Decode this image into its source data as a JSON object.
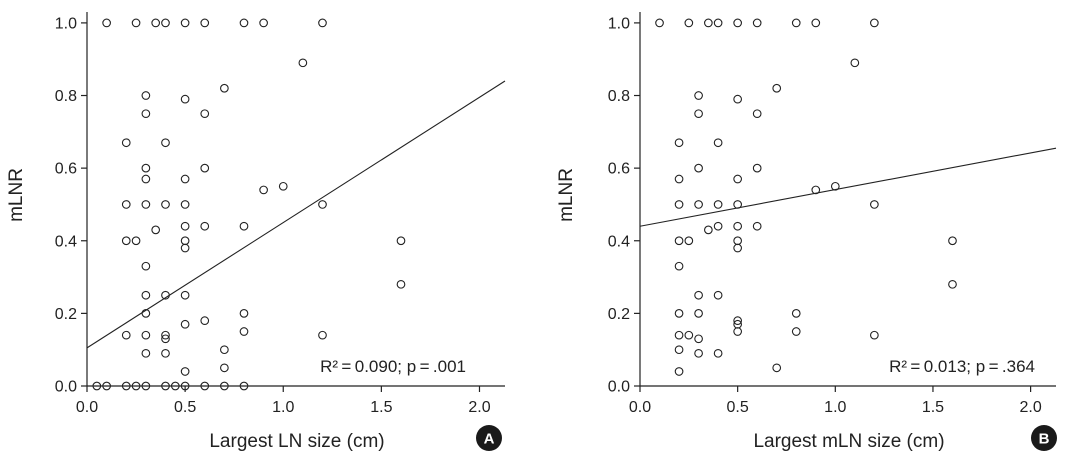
{
  "chart_data": [
    {
      "type": "scatter",
      "panel_label": "A",
      "xlabel": "Largest LN size (cm)",
      "ylabel": "mLNR",
      "xlim": [
        0,
        2.13
      ],
      "ylim": [
        0,
        1.03
      ],
      "xticks": [
        "0.0",
        "0.5",
        "1.0",
        "1.5",
        "2.0"
      ],
      "yticks": [
        "0.0",
        "0.2",
        "0.4",
        "0.6",
        "0.8",
        "1.0"
      ],
      "annotation_r2": "R² = 0.090; p = .001",
      "fit_line": {
        "x": [
          0,
          2.13
        ],
        "y": [
          0.105,
          0.84
        ]
      },
      "points": [
        [
          0.1,
          1.0
        ],
        [
          0.25,
          1.0
        ],
        [
          0.35,
          1.0
        ],
        [
          0.4,
          1.0
        ],
        [
          0.5,
          1.0
        ],
        [
          0.6,
          1.0
        ],
        [
          0.8,
          1.0
        ],
        [
          0.9,
          1.0
        ],
        [
          1.2,
          1.0
        ],
        [
          1.1,
          0.89
        ],
        [
          0.3,
          0.8
        ],
        [
          0.5,
          0.79
        ],
        [
          0.7,
          0.82
        ],
        [
          0.3,
          0.75
        ],
        [
          0.6,
          0.75
        ],
        [
          0.2,
          0.67
        ],
        [
          0.4,
          0.67
        ],
        [
          0.3,
          0.6
        ],
        [
          0.6,
          0.6
        ],
        [
          0.3,
          0.57
        ],
        [
          0.5,
          0.57
        ],
        [
          0.9,
          0.54
        ],
        [
          1.0,
          0.55
        ],
        [
          0.2,
          0.5
        ],
        [
          0.3,
          0.5
        ],
        [
          0.4,
          0.5
        ],
        [
          0.5,
          0.5
        ],
        [
          1.2,
          0.5
        ],
        [
          0.35,
          0.43
        ],
        [
          0.5,
          0.44
        ],
        [
          0.6,
          0.44
        ],
        [
          0.8,
          0.44
        ],
        [
          0.2,
          0.4
        ],
        [
          0.25,
          0.4
        ],
        [
          0.5,
          0.4
        ],
        [
          0.5,
          0.38
        ],
        [
          1.6,
          0.4
        ],
        [
          0.3,
          0.33
        ],
        [
          1.6,
          0.28
        ],
        [
          0.3,
          0.25
        ],
        [
          0.4,
          0.25
        ],
        [
          0.5,
          0.25
        ],
        [
          0.3,
          0.2
        ],
        [
          0.8,
          0.2
        ],
        [
          0.6,
          0.18
        ],
        [
          0.5,
          0.17
        ],
        [
          0.8,
          0.15
        ],
        [
          0.2,
          0.14
        ],
        [
          0.3,
          0.14
        ],
        [
          0.4,
          0.14
        ],
        [
          0.4,
          0.13
        ],
        [
          1.2,
          0.14
        ],
        [
          0.3,
          0.09
        ],
        [
          0.4,
          0.09
        ],
        [
          0.7,
          0.1
        ],
        [
          0.7,
          0.05
        ],
        [
          0.5,
          0.04
        ],
        [
          0.05,
          0.0
        ],
        [
          0.1,
          0.0
        ],
        [
          0.2,
          0.0
        ],
        [
          0.25,
          0.0
        ],
        [
          0.3,
          0.0
        ],
        [
          0.4,
          0.0
        ],
        [
          0.45,
          0.0
        ],
        [
          0.5,
          0.0
        ],
        [
          0.6,
          0.0
        ],
        [
          0.7,
          0.0
        ],
        [
          0.8,
          0.0
        ]
      ]
    },
    {
      "type": "scatter",
      "panel_label": "B",
      "xlabel": "Largest mLN size (cm)",
      "ylabel": "mLNR",
      "xlim": [
        0,
        2.13
      ],
      "ylim": [
        0,
        1.03
      ],
      "xticks": [
        "0.0",
        "0.5",
        "1.0",
        "1.5",
        "2.0"
      ],
      "yticks": [
        "0.0",
        "0.2",
        "0.4",
        "0.6",
        "0.8",
        "1.0"
      ],
      "annotation_r2": "R² = 0.013; p = .364",
      "fit_line": {
        "x": [
          0,
          2.13
        ],
        "y": [
          0.44,
          0.655
        ]
      },
      "points": [
        [
          0.1,
          1.0
        ],
        [
          0.25,
          1.0
        ],
        [
          0.35,
          1.0
        ],
        [
          0.4,
          1.0
        ],
        [
          0.5,
          1.0
        ],
        [
          0.6,
          1.0
        ],
        [
          0.8,
          1.0
        ],
        [
          0.9,
          1.0
        ],
        [
          1.2,
          1.0
        ],
        [
          1.1,
          0.89
        ],
        [
          0.3,
          0.8
        ],
        [
          0.5,
          0.79
        ],
        [
          0.7,
          0.82
        ],
        [
          0.3,
          0.75
        ],
        [
          0.6,
          0.75
        ],
        [
          0.2,
          0.67
        ],
        [
          0.4,
          0.67
        ],
        [
          0.3,
          0.6
        ],
        [
          0.6,
          0.6
        ],
        [
          0.2,
          0.57
        ],
        [
          0.5,
          0.57
        ],
        [
          0.9,
          0.54
        ],
        [
          1.0,
          0.55
        ],
        [
          0.2,
          0.5
        ],
        [
          0.3,
          0.5
        ],
        [
          0.4,
          0.5
        ],
        [
          0.5,
          0.5
        ],
        [
          1.2,
          0.5
        ],
        [
          0.35,
          0.43
        ],
        [
          0.4,
          0.44
        ],
        [
          0.5,
          0.44
        ],
        [
          0.6,
          0.44
        ],
        [
          0.2,
          0.4
        ],
        [
          0.25,
          0.4
        ],
        [
          0.5,
          0.4
        ],
        [
          0.5,
          0.38
        ],
        [
          1.6,
          0.4
        ],
        [
          0.2,
          0.33
        ],
        [
          1.6,
          0.28
        ],
        [
          0.3,
          0.25
        ],
        [
          0.4,
          0.25
        ],
        [
          0.2,
          0.2
        ],
        [
          0.3,
          0.2
        ],
        [
          0.8,
          0.2
        ],
        [
          0.5,
          0.18
        ],
        [
          0.5,
          0.17
        ],
        [
          0.5,
          0.15
        ],
        [
          0.8,
          0.15
        ],
        [
          0.2,
          0.14
        ],
        [
          0.25,
          0.14
        ],
        [
          0.3,
          0.13
        ],
        [
          1.2,
          0.14
        ],
        [
          0.2,
          0.1
        ],
        [
          0.3,
          0.09
        ],
        [
          0.4,
          0.09
        ],
        [
          0.2,
          0.04
        ],
        [
          0.7,
          0.05
        ]
      ]
    }
  ]
}
